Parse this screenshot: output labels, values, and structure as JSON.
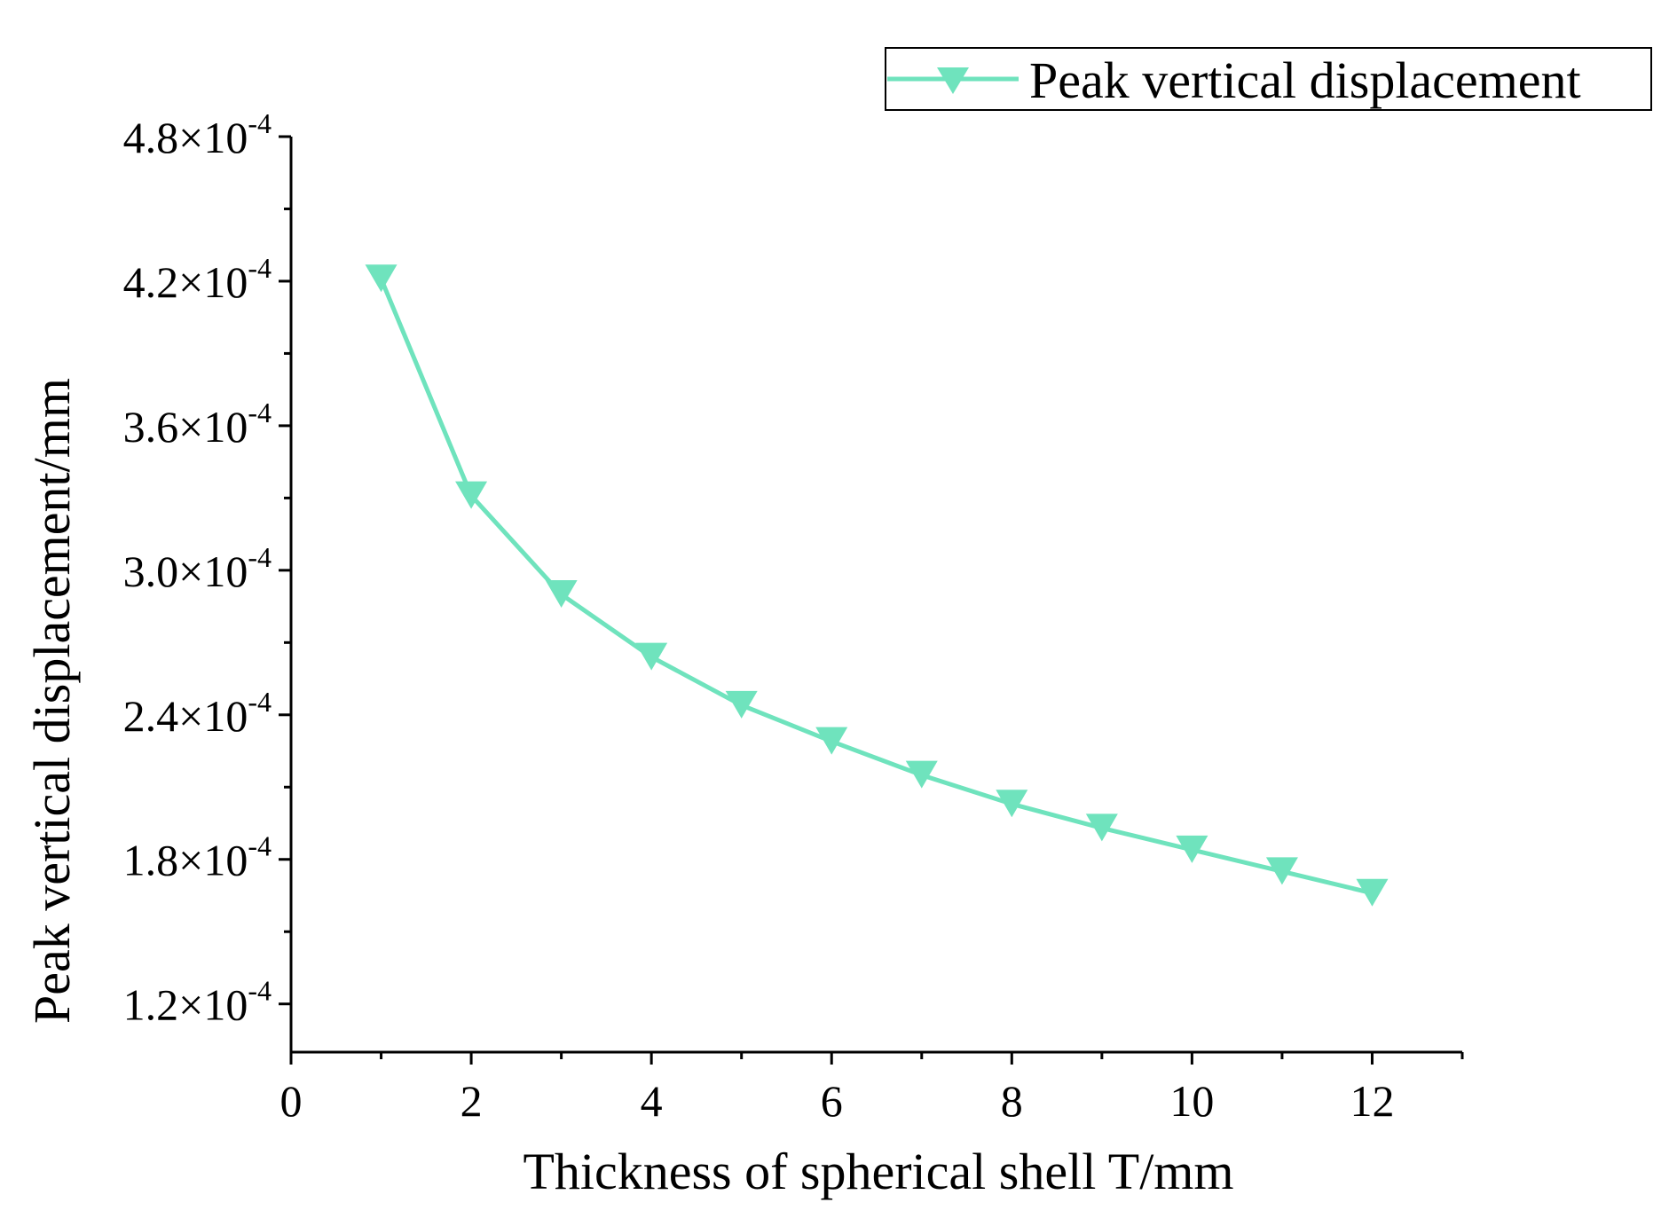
{
  "chart_data": {
    "type": "line",
    "title": "",
    "xlabel": "Thickness of spherical shell T/mm",
    "ylabel": "Peak vertical displacement/mm",
    "xlim": [
      0,
      13
    ],
    "ylim": [
      0.0001,
      0.00048
    ],
    "x_ticks": [
      0,
      2,
      4,
      6,
      8,
      10,
      12
    ],
    "x_tick_labels": [
      "0",
      "2",
      "4",
      "6",
      "8",
      "10",
      "12"
    ],
    "x_minor_ticks": [
      1,
      3,
      5,
      7,
      9,
      11,
      13
    ],
    "y_ticks": [
      {
        "value": 0.00012,
        "mantissa": "1.2×10",
        "exponent": "-4"
      },
      {
        "value": 0.00018,
        "mantissa": "1.8×10",
        "exponent": "-4"
      },
      {
        "value": 0.00024,
        "mantissa": "2.4×10",
        "exponent": "-4"
      },
      {
        "value": 0.0003,
        "mantissa": "3.0×10",
        "exponent": "-4"
      },
      {
        "value": 0.00036,
        "mantissa": "3.6×10",
        "exponent": "-4"
      },
      {
        "value": 0.00042,
        "mantissa": "4.2×10",
        "exponent": "-4"
      },
      {
        "value": 0.00048,
        "mantissa": "4.8×10",
        "exponent": "-4"
      }
    ],
    "y_minor_ticks": [
      0.00015,
      0.00021,
      0.00027,
      0.00033,
      0.00039,
      0.00045
    ],
    "grid": false,
    "legend_position": "top-right",
    "series": [
      {
        "name": "Peak vertical displacement",
        "color": "#6fe3bd",
        "marker": "triangle-down",
        "x": [
          1,
          2,
          3,
          4,
          5,
          6,
          7,
          8,
          9,
          10,
          11,
          12
        ],
        "values": [
          0.000421,
          0.000331,
          0.00029,
          0.000264,
          0.000244,
          0.000229,
          0.000215,
          0.000203,
          0.000193,
          0.000184,
          0.000175,
          0.000166
        ]
      }
    ]
  }
}
